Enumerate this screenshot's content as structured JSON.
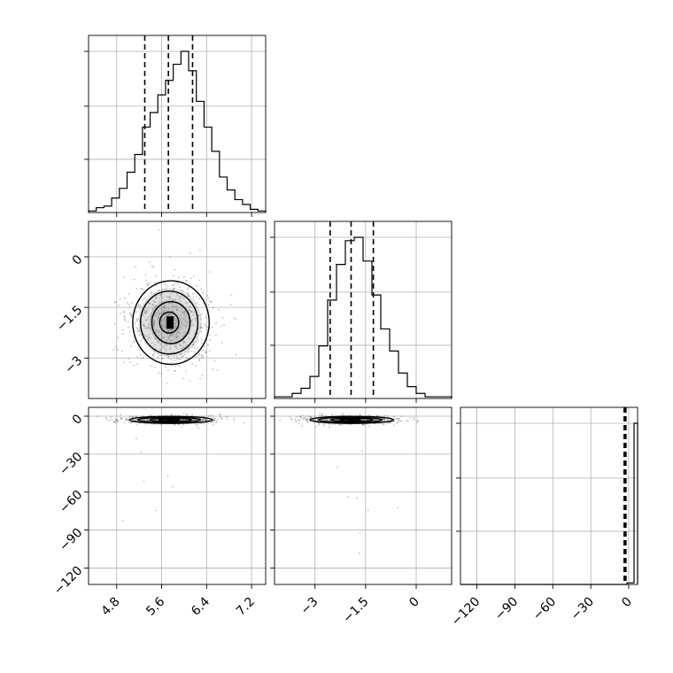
{
  "chart_data": {
    "type": "corner",
    "title": "",
    "parameters": [
      {
        "ticks": [
          4.8,
          5.6,
          6.4,
          7.2
        ],
        "range": [
          4.3,
          7.45
        ],
        "quantiles": [
          5.3,
          5.72,
          6.15
        ],
        "histogram": [
          1,
          3,
          4,
          9,
          15,
          25,
          36,
          53,
          62,
          73,
          82,
          92,
          100,
          88,
          69,
          53,
          38,
          22,
          14,
          8,
          5,
          2,
          1
        ]
      },
      {
        "ticks": [
          -3.0,
          -1.5,
          0.0
        ],
        "range": [
          -4.2,
          1.05
        ],
        "quantiles": [
          -2.55,
          -1.93,
          -1.27
        ],
        "histogram": [
          1,
          1,
          3,
          6,
          13,
          31,
          58,
          79,
          93,
          95,
          81,
          61,
          41,
          28,
          15,
          7,
          3,
          1,
          1,
          1
        ]
      },
      {
        "ticks": [
          -120,
          -90,
          -60,
          -30,
          0
        ],
        "range": [
          -133,
          7
        ],
        "quantiles": [
          -3.6,
          -2.9,
          -2.2
        ],
        "histogram": [
          0,
          0,
          0,
          0,
          0,
          0,
          0,
          0,
          0,
          0,
          0,
          0,
          0,
          0,
          0,
          0,
          0,
          0,
          0,
          0,
          0,
          0,
          0,
          0,
          0,
          0,
          0,
          0,
          0,
          0,
          0,
          0,
          0,
          0,
          0,
          0,
          0,
          0,
          0,
          0,
          0,
          0,
          0,
          0,
          0,
          0,
          0,
          1,
          1,
          100
        ]
      }
    ],
    "joint": {
      "p1_p0": {
        "center": [
          5.75,
          -1.95
        ],
        "sd": [
          0.34,
          0.62
        ]
      },
      "p2_p0": {
        "center": [
          5.75,
          -2.9
        ],
        "sd": [
          0.37,
          1.4
        ]
      },
      "p2_p1": {
        "center": [
          -1.93,
          -2.9
        ],
        "sd": [
          0.62,
          1.4
        ]
      }
    },
    "grid": true
  }
}
